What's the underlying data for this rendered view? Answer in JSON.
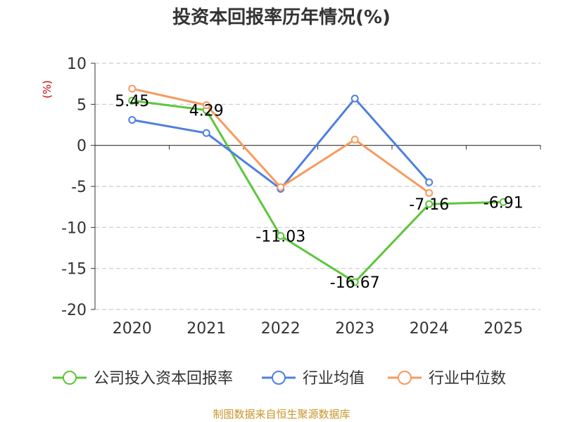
{
  "chart_data": {
    "type": "line",
    "title": "投资本回报率历年情况(%)",
    "ylabel": "(%)",
    "categories": [
      "2020",
      "2021",
      "2022",
      "2023",
      "2024",
      "2025"
    ],
    "ylim": [
      -20,
      10
    ],
    "yticks": [
      10,
      5,
      0,
      -5,
      -10,
      -15,
      -20
    ],
    "grid": true,
    "legend_position": "bottom",
    "series": [
      {
        "name": "公司投入资本回报率",
        "color": "#5cc63b",
        "values": [
          5.45,
          4.29,
          -11.03,
          -16.67,
          -7.16,
          -6.91
        ],
        "labels": [
          "5.45",
          "4.29",
          "-11.03",
          "-16.67",
          "-7.16",
          "-6.91"
        ]
      },
      {
        "name": "行业均值",
        "color": "#4f7fdf",
        "values": [
          3.1,
          1.5,
          -5.3,
          5.7,
          -4.5,
          null
        ]
      },
      {
        "name": "行业中位数",
        "color": "#f79a5e",
        "values": [
          6.9,
          4.9,
          -5.1,
          0.7,
          -5.8,
          null
        ]
      }
    ]
  },
  "footer": {
    "source": "制图数据来自恒生聚源数据库"
  }
}
